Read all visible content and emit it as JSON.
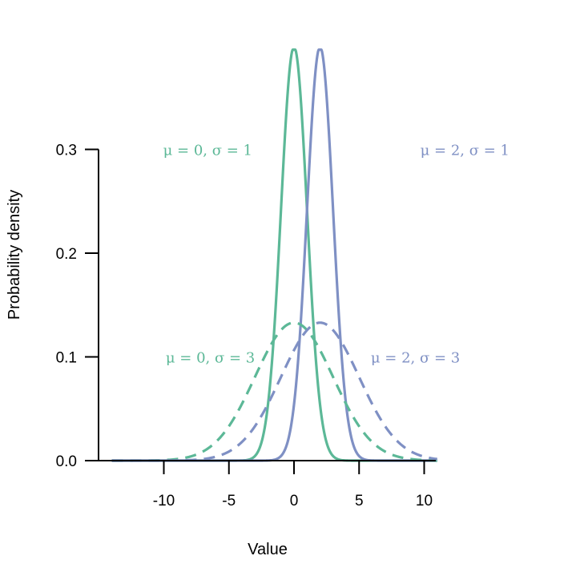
{
  "chart_data": {
    "type": "line",
    "title": "",
    "xlabel": "Value",
    "ylabel": "Probability density",
    "xlim": [
      -14,
      11
    ],
    "ylim": [
      0,
      0.4
    ],
    "x_ticks": [
      -10,
      -5,
      0,
      5,
      10
    ],
    "x_tick_labels": [
      "-10",
      "-5",
      "0",
      "5",
      "10"
    ],
    "y_ticks": [
      0.0,
      0.1,
      0.2,
      0.3
    ],
    "y_tick_labels": [
      "0.0",
      "0.1",
      "0.2",
      "0.3"
    ],
    "grid": false,
    "legend": "none",
    "series": [
      {
        "label": "μ = 0, σ = 1",
        "mu": 0,
        "sigma": 1,
        "color": "#5cb897",
        "style": "solid",
        "label_x": -3.2,
        "label_y": 0.3
      },
      {
        "label": "μ = 2, σ = 1",
        "mu": 2,
        "sigma": 1,
        "color": "#7f90c4",
        "style": "solid",
        "label_x": 9.7,
        "label_y": 0.3
      },
      {
        "label": "μ = 0, σ = 3",
        "mu": 0,
        "sigma": 3,
        "color": "#5cb897",
        "style": "dashed",
        "label_x": -3.0,
        "label_y": 0.1
      },
      {
        "label": "μ = 2, σ = 3",
        "mu": 2,
        "sigma": 3,
        "color": "#7f90c4",
        "style": "dashed",
        "label_x": 5.9,
        "label_y": 0.1
      }
    ]
  }
}
